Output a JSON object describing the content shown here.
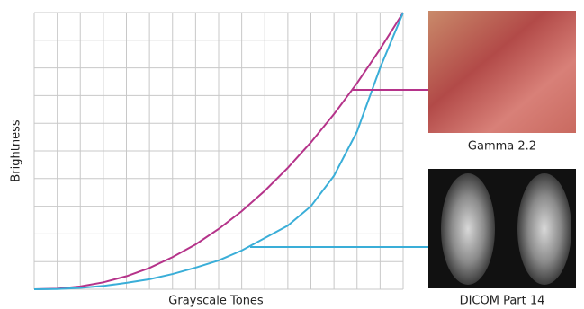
{
  "chart_data": {
    "type": "line",
    "x_label": "Grayscale Tones",
    "y_label": "Brightness",
    "x": [
      0,
      1,
      2,
      3,
      4,
      5,
      6,
      7,
      8,
      9,
      10,
      11,
      12,
      13,
      14,
      15,
      16
    ],
    "series": [
      {
        "name": "Gamma 2.2",
        "color": "#b5338a",
        "values": [
          0,
          0.02,
          0.1,
          0.25,
          0.47,
          0.77,
          1.16,
          1.62,
          2.18,
          2.82,
          3.56,
          4.39,
          5.31,
          6.33,
          7.45,
          8.68,
          10
        ]
      },
      {
        "name": "DICOM Part 14",
        "color": "#3aaed8",
        "values": [
          0,
          0.01,
          0.05,
          0.12,
          0.23,
          0.36,
          0.55,
          0.78,
          1.04,
          1.4,
          1.85,
          2.3,
          3.0,
          4.1,
          5.7,
          8.0,
          10
        ]
      }
    ],
    "xlim": [
      0,
      16
    ],
    "ylim": [
      0,
      10
    ],
    "xticks": [
      0,
      1,
      2,
      3,
      4,
      5,
      6,
      7,
      8,
      9,
      10,
      11,
      12,
      13,
      14,
      15,
      16
    ],
    "yticks": [
      0,
      1,
      2,
      3,
      4,
      5,
      6,
      7,
      8,
      9,
      10
    ],
    "grid": true
  }
}
